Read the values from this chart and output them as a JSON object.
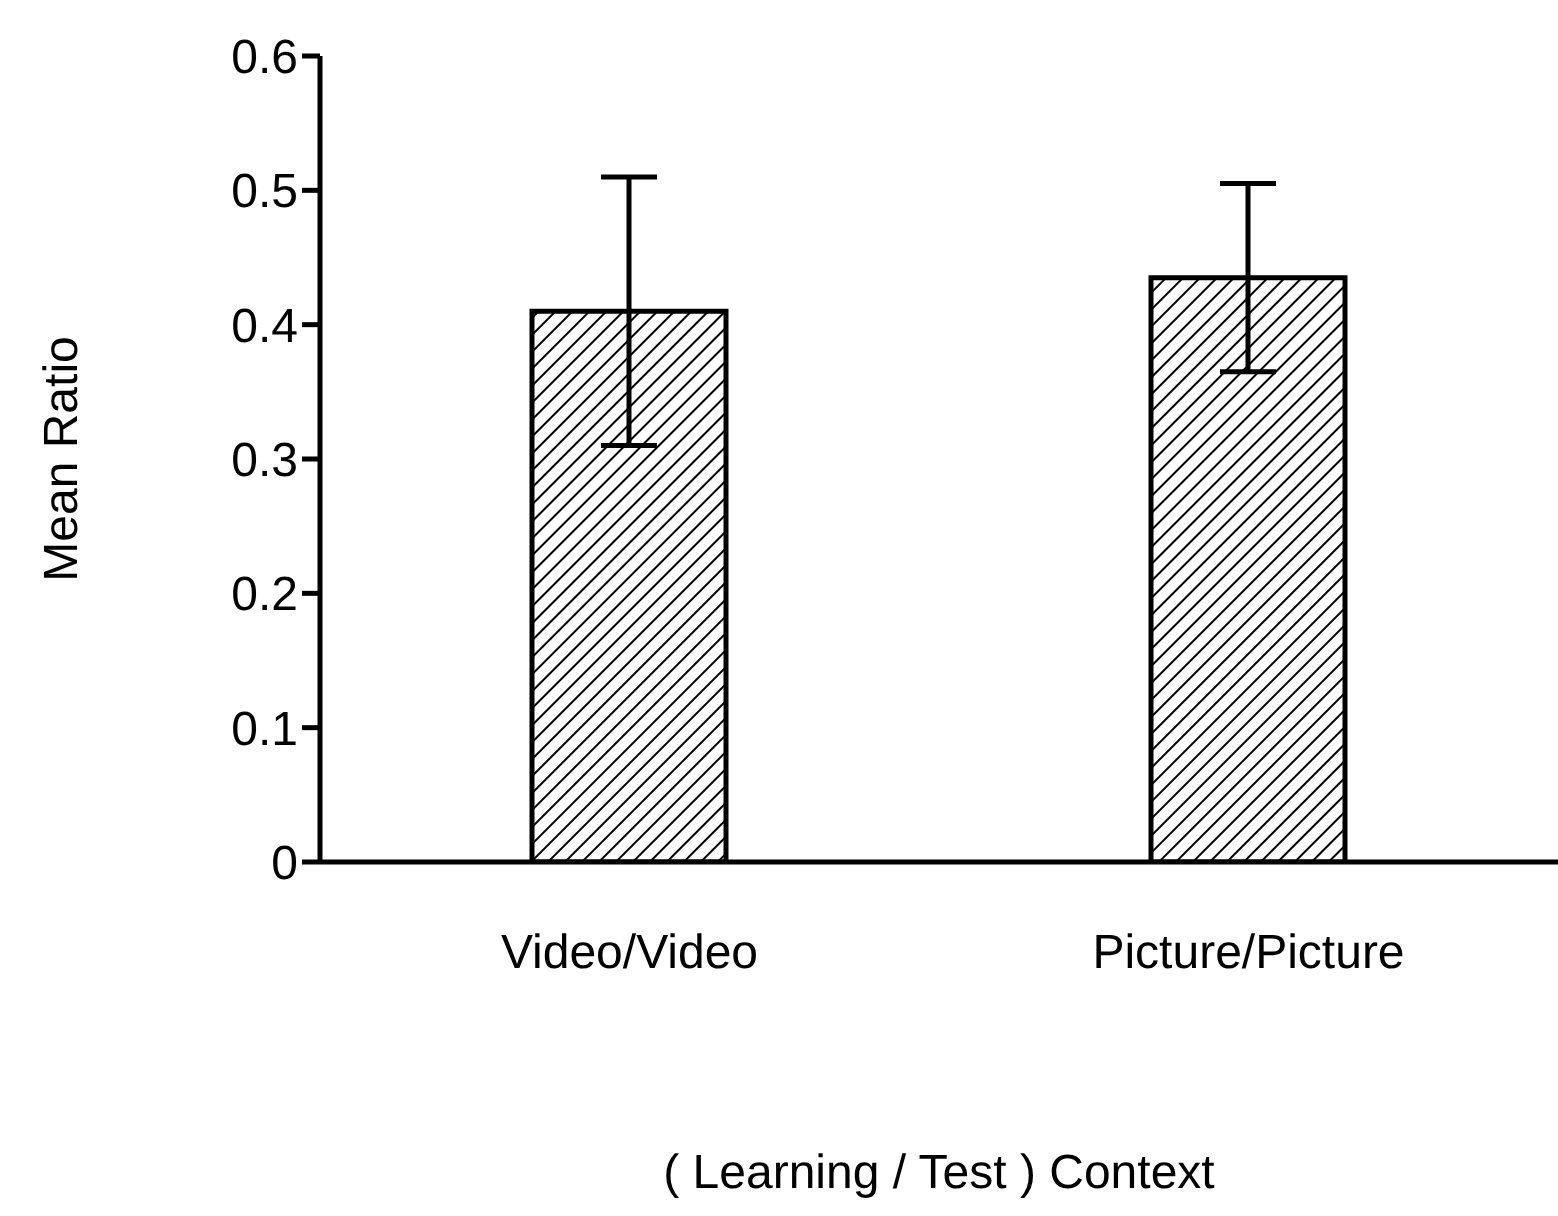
{
  "chart_data": {
    "type": "bar",
    "xlabel": "( Learning  / Test ) Context",
    "ylabel": "Mean Ratio",
    "categories": [
      "Video/Video",
      "Picture/Picture"
    ],
    "values": [
      0.41,
      0.435
    ],
    "errors": [
      0.1,
      0.07
    ],
    "color": "#000000",
    "ylim": [
      0,
      0.6
    ],
    "yticks": [
      0,
      0.1,
      0.2,
      0.3,
      0.4,
      0.5,
      0.6
    ],
    "grid": false
  }
}
